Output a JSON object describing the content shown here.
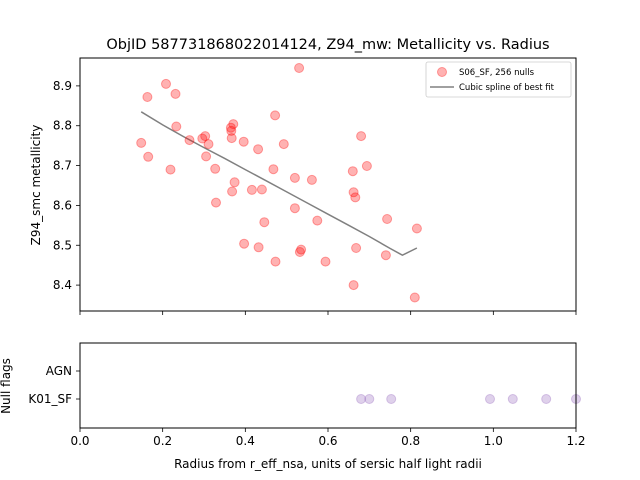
{
  "chart_data": [
    {
      "type": "scatter",
      "title": "ObjID 587731868022014124, Z94_mw: Metallicity vs. Radius",
      "xlabel": "",
      "ylabel": "Z94_smc metallicity",
      "xlim": [
        0.0,
        1.2
      ],
      "ylim": [
        8.335,
        8.97
      ],
      "yticks": [
        "8.4",
        "8.5",
        "8.6",
        "8.7",
        "8.8",
        "8.9"
      ],
      "legend_position": "top-right",
      "grid": false,
      "series": [
        {
          "name": "S06_SF, 256 nulls",
          "kind": "scatter",
          "color": "#ff0000",
          "points": [
            [
              0.148,
              8.757
            ],
            [
              0.163,
              8.872
            ],
            [
              0.165,
              8.722
            ],
            [
              0.208,
              8.905
            ],
            [
              0.219,
              8.69
            ],
            [
              0.231,
              8.88
            ],
            [
              0.233,
              8.798
            ],
            [
              0.265,
              8.764
            ],
            [
              0.296,
              8.768
            ],
            [
              0.303,
              8.774
            ],
            [
              0.305,
              8.723
            ],
            [
              0.311,
              8.754
            ],
            [
              0.327,
              8.692
            ],
            [
              0.329,
              8.607
            ],
            [
              0.365,
              8.795
            ],
            [
              0.366,
              8.787
            ],
            [
              0.367,
              8.769
            ],
            [
              0.371,
              8.804
            ],
            [
              0.368,
              8.635
            ],
            [
              0.374,
              8.658
            ],
            [
              0.396,
              8.76
            ],
            [
              0.397,
              8.504
            ],
            [
              0.416,
              8.639
            ],
            [
              0.431,
              8.741
            ],
            [
              0.432,
              8.495
            ],
            [
              0.44,
              8.64
            ],
            [
              0.446,
              8.558
            ],
            [
              0.468,
              8.691
            ],
            [
              0.472,
              8.826
            ],
            [
              0.473,
              8.459
            ],
            [
              0.493,
              8.754
            ],
            [
              0.52,
              8.669
            ],
            [
              0.52,
              8.593
            ],
            [
              0.53,
              8.945
            ],
            [
              0.532,
              8.483
            ],
            [
              0.535,
              8.489
            ],
            [
              0.561,
              8.664
            ],
            [
              0.574,
              8.562
            ],
            [
              0.594,
              8.459
            ],
            [
              0.66,
              8.686
            ],
            [
              0.662,
              8.633
            ],
            [
              0.662,
              8.4
            ],
            [
              0.666,
              8.62
            ],
            [
              0.668,
              8.493
            ],
            [
              0.68,
              8.774
            ],
            [
              0.694,
              8.699
            ],
            [
              0.74,
              8.475
            ],
            [
              0.743,
              8.566
            ],
            [
              0.81,
              8.369
            ],
            [
              0.815,
              8.542
            ]
          ]
        },
        {
          "name": "Cubic spline of best fit",
          "kind": "line",
          "color": "#808080",
          "points": [
            [
              0.148,
              8.835
            ],
            [
              0.2,
              8.802
            ],
            [
              0.25,
              8.773
            ],
            [
              0.3,
              8.745
            ],
            [
              0.35,
              8.718
            ],
            [
              0.4,
              8.69
            ],
            [
              0.45,
              8.662
            ],
            [
              0.5,
              8.634
            ],
            [
              0.55,
              8.606
            ],
            [
              0.6,
              8.578
            ],
            [
              0.65,
              8.55
            ],
            [
              0.7,
              8.522
            ],
            [
              0.75,
              8.492
            ],
            [
              0.78,
              8.475
            ],
            [
              0.815,
              8.493
            ]
          ]
        }
      ]
    },
    {
      "type": "scatter",
      "title": "",
      "xlabel": "Radius from r_eff_nsa, units of sersic half light radii",
      "ylabel": "Null flags",
      "xlim": [
        0.0,
        1.2
      ],
      "xticks": [
        "0.0",
        "0.2",
        "0.4",
        "0.6",
        "0.8",
        "1.0",
        "1.2"
      ],
      "categories": [
        "K01_SF",
        "AGN"
      ],
      "series": [
        {
          "name": "",
          "kind": "scatter",
          "color": "#9467bd",
          "category": "K01_SF",
          "x": [
            0.68,
            0.7,
            0.753,
            0.992,
            1.047,
            1.128,
            1.2
          ]
        }
      ]
    }
  ]
}
